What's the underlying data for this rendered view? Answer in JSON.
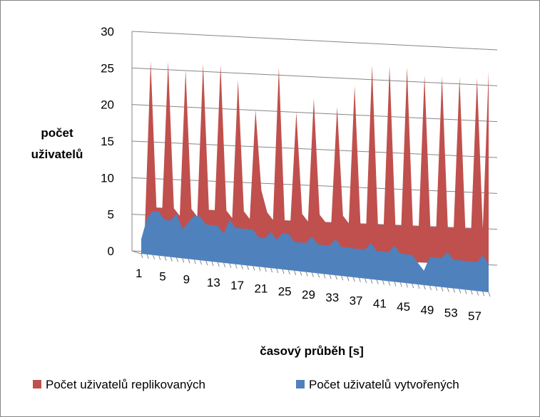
{
  "chart_data": {
    "type": "area3d",
    "x_label": "časový průběh [s]",
    "y_label": "počet uživatelů",
    "categories": [
      1,
      null,
      null,
      null,
      5,
      null,
      null,
      null,
      9,
      null,
      null,
      null,
      13,
      null,
      null,
      null,
      17,
      null,
      null,
      null,
      21,
      null,
      null,
      null,
      25,
      null,
      null,
      null,
      29,
      null,
      null,
      null,
      33,
      null,
      null,
      null,
      37,
      null,
      null,
      null,
      41,
      null,
      null,
      null,
      45,
      null,
      null,
      null,
      49,
      null,
      null,
      null,
      53,
      null,
      null,
      null,
      57,
      null,
      null,
      null
    ],
    "series": [
      {
        "name": "Počet uživatelů replikovaných",
        "color": "#c0504d",
        "values": [
          3,
          26,
          6,
          6,
          26,
          6,
          5,
          25,
          6,
          5,
          26,
          6,
          6,
          26,
          6,
          5,
          24,
          6,
          5,
          20,
          9,
          6,
          5,
          26,
          5,
          5,
          20,
          6,
          5,
          22,
          6,
          5,
          5,
          21,
          6,
          5,
          24,
          5,
          5,
          27,
          5,
          5,
          27,
          5,
          5,
          27,
          5,
          5,
          26,
          5,
          5,
          26,
          5,
          5,
          26,
          5,
          5,
          26,
          5,
          27
        ]
      },
      {
        "name": "Počet uživatelů vytvořených",
        "color": "#4f81bd",
        "values": [
          2,
          5,
          6,
          6,
          5,
          5,
          6,
          4,
          5,
          6,
          6,
          5,
          5,
          5,
          4,
          6,
          5,
          5,
          5,
          5,
          4,
          4,
          5,
          4,
          5,
          5,
          4,
          4,
          4,
          5,
          4,
          4,
          4,
          5,
          4,
          4,
          4,
          4,
          4,
          5,
          4,
          4,
          4,
          5,
          4,
          4,
          4,
          3,
          2,
          4,
          4,
          4,
          5,
          4,
          4,
          4,
          4,
          4,
          5,
          4
        ]
      }
    ],
    "ylim": [
      0,
      30
    ],
    "yticks": [
      0,
      5,
      10,
      15,
      20,
      25,
      30
    ],
    "grid": true,
    "legend": "bottom"
  }
}
